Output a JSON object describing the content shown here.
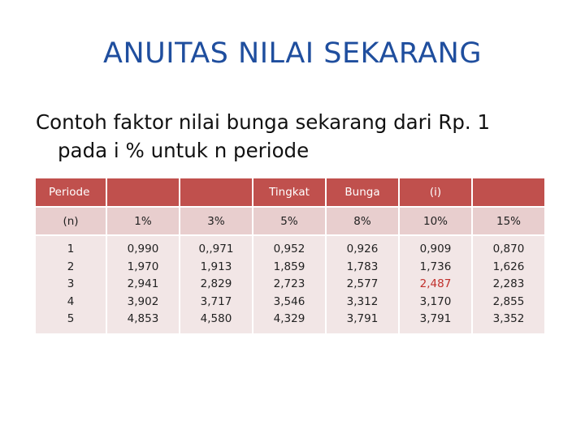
{
  "title": "ANUITAS NILAI SEKARANG",
  "subtitle": {
    "line1": "Contoh faktor nilai bunga sekarang dari Rp. 1",
    "line2": "pada i % untuk n periode"
  },
  "table": {
    "header": {
      "periode": "Periode",
      "tingkat": "Tingkat",
      "bunga": "Bunga",
      "i": "(i)"
    },
    "subheader": [
      "(n)",
      "1%",
      "3%",
      "5%",
      "8%",
      "10%",
      "15%"
    ],
    "columns": [
      [
        "1",
        "2",
        "3",
        "4",
        "5"
      ],
      [
        "0,990",
        "1,970",
        "2,941",
        "3,902",
        "4,853"
      ],
      [
        "0,,971",
        "1,913",
        "2,829",
        "3,717",
        "4,580"
      ],
      [
        "0,952",
        "1,859",
        "2,723",
        "3,546",
        "4,329"
      ],
      [
        "0,926",
        "1,783",
        "2,577",
        "3,312",
        "3,791"
      ],
      [
        "0,909",
        "1,736",
        "2,487",
        "3,170",
        "3,791"
      ],
      [
        "0,870",
        "1,626",
        "2,283",
        "2,855",
        "3,352"
      ]
    ],
    "highlight_color": "#c0302c",
    "header_color": "#c0504d"
  }
}
